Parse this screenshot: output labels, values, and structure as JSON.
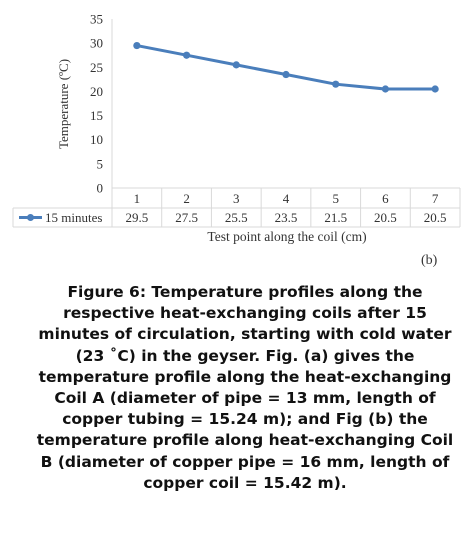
{
  "chart_data": {
    "type": "line",
    "categories": [
      "1",
      "2",
      "3",
      "4",
      "5",
      "6",
      "7"
    ],
    "series": [
      {
        "name": "15 minutes",
        "values": [
          29.5,
          27.5,
          25.5,
          23.5,
          21.5,
          20.5,
          20.5
        ],
        "color": "#4a7ebb"
      }
    ],
    "ylabel": "Temperature (ºC)",
    "xlabel": "Test point along the coil (cm)",
    "y_ticks": [
      "0",
      "5",
      "10",
      "15",
      "20",
      "25",
      "30",
      "35"
    ],
    "ylim": [
      0,
      35
    ],
    "grid": false,
    "legend_placement": "data-table-row",
    "data_table": true
  },
  "panel_label": "(b)",
  "caption": "Figure 6: Temperature profiles along the respective heat-exchanging coils after 15 minutes of circulation, starting with cold water (23 ˚C) in the geyser. Fig. (a) gives the temperature profile along the heat-exchanging Coil A (diameter of pipe = 13 mm, length of copper tubing = 15.24 m); and Fig (b) the temperature profile along heat-exchanging Coil B (diameter of copper pipe = 16 mm, length of copper coil = 15.42 m)."
}
